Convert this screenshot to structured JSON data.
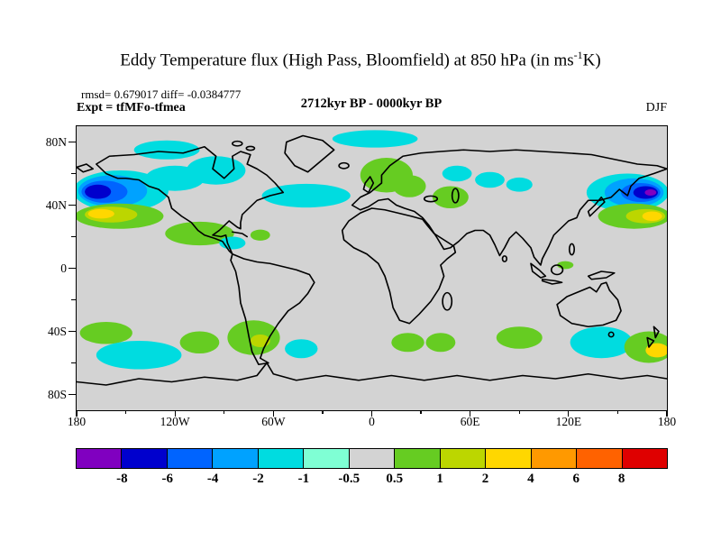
{
  "header": {
    "title_prefix": "Eddy Temperature flux (High Pass, Bloomfield) at 850 hPa (in ms",
    "title_sup": "-1",
    "title_suffix": "K)",
    "stats": "rmsd= 0.679017 diff= -0.0384777",
    "expt": "Expt = tfMFo-tfmea",
    "period": "2712kyr BP - 0000kyr BP",
    "season": "DJF"
  },
  "chart_data": {
    "type": "heatmap",
    "subtype": "filled-contour anomaly map over world coastlines",
    "projection": "equirectangular",
    "lon_range": [
      -180,
      180
    ],
    "lat_range": [
      -90,
      90
    ],
    "title": "Eddy Temperature flux (High Pass, Bloomfield) at 850 hPa (in ms-1K)",
    "units": "ms-1 K",
    "season": "DJF",
    "experiment": "tfMFo-tfmea",
    "comparison": "2712kyr BP - 0000kyr BP",
    "rmsd": 0.679017,
    "diff": -0.0384777,
    "lat_ticks": [
      "80N",
      "40N",
      "0",
      "40S",
      "80S"
    ],
    "lon_ticks": [
      "180",
      "120W",
      "60W",
      "0",
      "60E",
      "120E",
      "180"
    ],
    "map_background": "#d3d3d3",
    "coastline_color": "#000000",
    "colorbar": {
      "levels": [
        -8,
        -6,
        -4,
        -2,
        -1,
        -0.5,
        0.5,
        1,
        2,
        4,
        6,
        8
      ],
      "labels": [
        "-8",
        "-6",
        "-4",
        "-2",
        "-1",
        "-0.5",
        "0.5",
        "1",
        "2",
        "4",
        "6",
        "8"
      ],
      "colors": [
        "#8000c0",
        "#0000cd",
        "#0064ff",
        "#00a2ff",
        "#00dce0",
        "#7fffd4",
        "#d3d3d3",
        "#66cc22",
        "#bcd600",
        "#ffd700",
        "#ff9900",
        "#ff6200",
        "#df0000"
      ]
    },
    "anomalies": [
      {
        "region": "north-pacific-west-outer",
        "lon": -153,
        "lat": 49,
        "dlon": 58,
        "dlat": 26,
        "value_range": "-2 to -1",
        "ci": 4
      },
      {
        "region": "north-pacific-west-mid",
        "lon": -158,
        "lat": 49,
        "dlon": 42,
        "dlat": 20,
        "value_range": "-4 to -2",
        "ci": 3
      },
      {
        "region": "north-pacific-west-inner",
        "lon": -163,
        "lat": 48.5,
        "dlon": 28,
        "dlat": 14,
        "value_range": "-6 to -4",
        "ci": 2
      },
      {
        "region": "north-pacific-west-core",
        "lon": -167,
        "lat": 48.5,
        "dlon": 16,
        "dlat": 9,
        "value_range": "-8 to -6",
        "ci": 1
      },
      {
        "region": "subtropical-pacific-west-green",
        "lon": -154,
        "lat": 33,
        "dlon": 54,
        "dlat": 16,
        "value_range": "0.5 to 1",
        "ci": 7
      },
      {
        "region": "subtropical-pacific-west-mid",
        "lon": -159,
        "lat": 34,
        "dlon": 32,
        "dlat": 10,
        "value_range": "1 to 2",
        "ci": 8
      },
      {
        "region": "subtropical-pacific-west-core",
        "lon": -165,
        "lat": 34.5,
        "dlon": 16,
        "dlat": 6,
        "value_range": "2 to 4",
        "ci": 9
      },
      {
        "region": "alaska-arctic",
        "lon": -125,
        "lat": 75,
        "dlon": 40,
        "dlat": 12,
        "value_range": "-2 to -1",
        "ci": 4
      },
      {
        "region": "yukon",
        "lon": -120,
        "lat": 57,
        "dlon": 36,
        "dlat": 16,
        "value_range": "-2 to -1",
        "ci": 4
      },
      {
        "region": "central-canada",
        "lon": -95,
        "lat": 62,
        "dlon": 36,
        "dlat": 18,
        "value_range": "-2 to -1",
        "ci": 4
      },
      {
        "region": "north-atlantic",
        "lon": -40,
        "lat": 46,
        "dlon": 54,
        "dlat": 15,
        "value_range": "-2 to -1",
        "ci": 4
      },
      {
        "region": "arctic-atlantic",
        "lon": 2,
        "lat": 82,
        "dlon": 52,
        "dlat": 11,
        "value_range": "-2 to -1",
        "ci": 4
      },
      {
        "region": "europe",
        "lon": 9,
        "lat": 59,
        "dlon": 32,
        "dlat": 22,
        "value_range": "0.5 to 1",
        "ci": 7
      },
      {
        "region": "east-europe",
        "lon": 23,
        "lat": 52,
        "dlon": 20,
        "dlat": 14,
        "value_range": "0.5 to 1",
        "ci": 7
      },
      {
        "region": "central-asia-green",
        "lon": 48,
        "lat": 45,
        "dlon": 22,
        "dlat": 14,
        "value_range": "0.5 to 1",
        "ci": 7
      },
      {
        "region": "west-siberia",
        "lon": 52,
        "lat": 60,
        "dlon": 18,
        "dlat": 10,
        "value_range": "-2 to -1",
        "ci": 4
      },
      {
        "region": "central-siberia",
        "lon": 72,
        "lat": 56,
        "dlon": 18,
        "dlat": 10,
        "value_range": "-2 to -1",
        "ci": 4
      },
      {
        "region": "mongolia",
        "lon": 90,
        "lat": 53,
        "dlon": 16,
        "dlat": 9,
        "value_range": "-2 to -1",
        "ci": 4
      },
      {
        "region": "north-pacific-east-outer",
        "lon": 156,
        "lat": 48,
        "dlon": 50,
        "dlat": 24,
        "value_range": "-2 to -1",
        "ci": 4
      },
      {
        "region": "north-pacific-east-mid",
        "lon": 160,
        "lat": 48,
        "dlon": 36,
        "dlat": 18,
        "value_range": "-4 to -2",
        "ci": 3
      },
      {
        "region": "north-pacific-east-inner",
        "lon": 164,
        "lat": 48,
        "dlon": 24,
        "dlat": 12,
        "value_range": "-6 to -4",
        "ci": 2
      },
      {
        "region": "north-pacific-east-core",
        "lon": 167,
        "lat": 48,
        "dlon": 15,
        "dlat": 8,
        "value_range": "-8 to -6",
        "ci": 1
      },
      {
        "region": "north-pacific-east-center",
        "lon": 170,
        "lat": 48,
        "dlon": 7,
        "dlat": 4,
        "value_range": "< -8",
        "ci": 0
      },
      {
        "region": "east-asia-coast-green",
        "lon": 160,
        "lat": 33,
        "dlon": 44,
        "dlat": 16,
        "value_range": "0.5 to 1",
        "ci": 7
      },
      {
        "region": "east-asia-coast-mid",
        "lon": 167,
        "lat": 33,
        "dlon": 24,
        "dlat": 9,
        "value_range": "1 to 2",
        "ci": 8
      },
      {
        "region": "east-asia-coast-core",
        "lon": 171,
        "lat": 33,
        "dlon": 12,
        "dlat": 6,
        "value_range": "2 to 4",
        "ci": 9
      },
      {
        "region": "mexico",
        "lon": -105,
        "lat": 22,
        "dlon": 42,
        "dlat": 15,
        "value_range": "0.5 to 1",
        "ci": 7
      },
      {
        "region": "caribbean-cyan",
        "lon": -85,
        "lat": 16,
        "dlon": 16,
        "dlat": 8,
        "value_range": "-2 to -1",
        "ci": 4
      },
      {
        "region": "caribbean-green",
        "lon": -68,
        "lat": 21,
        "dlon": 12,
        "dlat": 7,
        "value_range": "0.5 to 1",
        "ci": 7
      },
      {
        "region": "south-pacific-green-1",
        "lon": -162,
        "lat": -41,
        "dlon": 32,
        "dlat": 14,
        "value_range": "0.5 to 1",
        "ci": 7
      },
      {
        "region": "south-pacific-cyan",
        "lon": -142,
        "lat": -55,
        "dlon": 52,
        "dlat": 18,
        "value_range": "-2 to -1",
        "ci": 4
      },
      {
        "region": "south-pacific-green-2",
        "lon": -105,
        "lat": -47,
        "dlon": 24,
        "dlat": 14,
        "value_range": "0.5 to 1",
        "ci": 7
      },
      {
        "region": "southern-south-america",
        "lon": -72,
        "lat": -44,
        "dlon": 32,
        "dlat": 22,
        "value_range": "0.5 to 1",
        "ci": 7
      },
      {
        "region": "southern-south-america-core",
        "lon": -68,
        "lat": -46,
        "dlon": 12,
        "dlat": 8,
        "value_range": "1 to 2",
        "ci": 8
      },
      {
        "region": "south-atlantic-cyan",
        "lon": -43,
        "lat": -51,
        "dlon": 20,
        "dlat": 12,
        "value_range": "-2 to -1",
        "ci": 4
      },
      {
        "region": "south-atlantic-green",
        "lon": 22,
        "lat": -47,
        "dlon": 20,
        "dlat": 12,
        "value_range": "0.5 to 1",
        "ci": 7
      },
      {
        "region": "south-indian-green-1",
        "lon": 42,
        "lat": -47,
        "dlon": 18,
        "dlat": 12,
        "value_range": "0.5 to 1",
        "ci": 7
      },
      {
        "region": "south-indian-green-2",
        "lon": 90,
        "lat": -44,
        "dlon": 28,
        "dlat": 14,
        "value_range": "0.5 to 1",
        "ci": 7
      },
      {
        "region": "south-pacific-west-cyan",
        "lon": 140,
        "lat": -47,
        "dlon": 38,
        "dlat": 20,
        "value_range": "-2 to -1",
        "ci": 4
      },
      {
        "region": "new-zealand-green",
        "lon": 169,
        "lat": -50,
        "dlon": 30,
        "dlat": 20,
        "value_range": "0.5 to 1",
        "ci": 7
      },
      {
        "region": "new-zealand-core",
        "lon": 174,
        "lat": -52,
        "dlon": 14,
        "dlat": 9,
        "value_range": "2 to 4",
        "ci": 9
      },
      {
        "region": "west-pacific-equatorial",
        "lon": 118,
        "lat": 2,
        "dlon": 10,
        "dlat": 5,
        "value_range": "0.5 to 1",
        "ci": 7
      }
    ]
  }
}
